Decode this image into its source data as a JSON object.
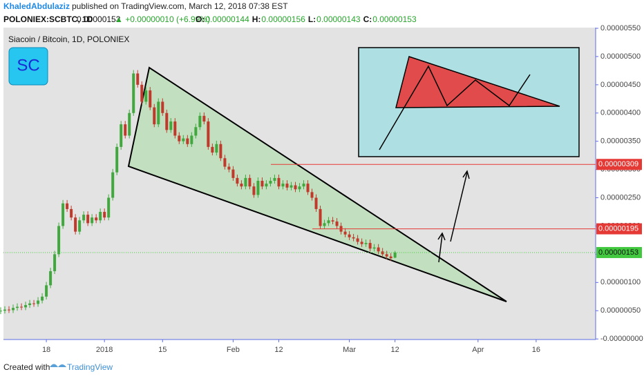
{
  "header": {
    "author": "KhaledAbdulaziz",
    "published": "published on TradingView.com, March 12, 2018 07:38 EST",
    "symbol": "POLONIEX:SCBTC, 1D",
    "last": "0.00000153",
    "change": "▲ +0.00000010 (+6.99%)",
    "ohlc": [
      "O:",
      "0.00000144",
      "H:",
      "0.00000156",
      "L:",
      "0.00000143",
      "C:",
      "0.00000153"
    ]
  },
  "chart_data": {
    "type": "candlestick",
    "title": "Siacoin / Bitcoin, 1D, POLONIEX",
    "logo": "SC",
    "up_color": "#41a83e",
    "down_color": "#c0392b",
    "open": [
      4.9e-07,
      5e-07,
      5.2e-07,
      5.1e-07,
      5.5e-07,
      5.7e-07,
      5.6e-07,
      6e-07,
      6.3e-07,
      6.2e-07,
      6.8e-07,
      7.5e-07,
      9.5e-07,
      1.2e-06,
      1.5e-06,
      2e-06,
      2.4e-06,
      2.3e-06,
      2.15e-06,
      1.9e-06,
      2.1e-06,
      2.2e-06,
      2.05e-06,
      2.15e-06,
      2.1e-06,
      2.25e-06,
      2.15e-06,
      2.5e-06,
      2.95e-06,
      3.4e-06,
      3.8e-06,
      3.6e-06,
      4e-06,
      4.7e-06,
      4.5e-06,
      4.2e-06,
      4.4e-06,
      4.1e-06,
      3.8e-06,
      4.2e-06,
      4e-06,
      3.7e-06,
      3.85e-06,
      3.6e-06,
      3.5e-06,
      3.55e-06,
      3.45e-06,
      3.6e-06,
      3.75e-06,
      3.95e-06,
      3.85e-06,
      3.4e-06,
      3.3e-06,
      3.45e-06,
      3.2e-06,
      3.05e-06,
      3e-06,
      2.85e-06,
      2.75e-06,
      2.7e-06,
      2.85e-06,
      2.7e-06,
      2.55e-06,
      2.8e-06,
      2.7e-06,
      2.75e-06,
      2.8e-06,
      2.85e-06,
      2.7e-06,
      2.75e-06,
      2.68e-06,
      2.72e-06,
      2.65e-06,
      2.7e-06,
      2.75e-06,
      2.6e-06,
      2.5e-06,
      2.3e-06,
      2e-06,
      2.05e-06,
      2.1e-06,
      2.08e-06,
      2e-06,
      1.9e-06,
      1.85e-06,
      1.8e-06,
      1.78e-06,
      1.72e-06,
      1.68e-06,
      1.7e-06,
      1.6e-06,
      1.62e-06,
      1.55e-06,
      1.5e-06,
      1.46e-06,
      1.44e-06
    ],
    "high": [
      5.6e-07,
      5.8e-07,
      5.8e-07,
      6.1e-07,
      6.3e-07,
      6.3e-07,
      6.6e-07,
      6.9e-07,
      6.9e-07,
      7.4e-07,
      8.1e-07,
      1.01e-06,
      1.26e-06,
      1.56e-06,
      2.06e-06,
      2.46e-06,
      2.46e-06,
      2.36e-06,
      2.21e-06,
      2.16e-06,
      2.26e-06,
      2.26e-06,
      2.21e-06,
      2.21e-06,
      2.31e-06,
      2.31e-06,
      2.56e-06,
      3.01e-06,
      3.46e-06,
      3.86e-06,
      3.86e-06,
      4.06e-06,
      4.76e-06,
      4.76e-06,
      4.56e-06,
      4.46e-06,
      4.46e-06,
      4.16e-06,
      4.26e-06,
      4.26e-06,
      4.06e-06,
      3.91e-06,
      3.91e-06,
      3.66e-06,
      3.61e-06,
      3.61e-06,
      3.66e-06,
      3.81e-06,
      4.01e-06,
      4.01e-06,
      3.91e-06,
      3.46e-06,
      3.51e-06,
      3.51e-06,
      3.26e-06,
      3.11e-06,
      3.06e-06,
      2.91e-06,
      2.81e-06,
      2.91e-06,
      2.91e-06,
      2.76e-06,
      2.86e-06,
      2.86e-06,
      2.81e-06,
      2.86e-06,
      2.91e-06,
      2.91e-06,
      2.81e-06,
      2.81e-06,
      2.78e-06,
      2.78e-06,
      2.76e-06,
      2.81e-06,
      2.81e-06,
      2.66e-06,
      2.56e-06,
      2.36e-06,
      2.11e-06,
      2.16e-06,
      2.16e-06,
      2.14e-06,
      2.06e-06,
      1.96e-06,
      1.91e-06,
      1.86e-06,
      1.84e-06,
      1.78e-06,
      1.76e-06,
      1.76e-06,
      1.68e-06,
      1.68e-06,
      1.61e-06,
      1.56e-06,
      1.52e-06,
      1.56e-06
    ],
    "low": [
      4.4e-07,
      4.5e-07,
      4.6e-07,
      4.6e-07,
      5e-07,
      5.1e-07,
      5.1e-07,
      5.5e-07,
      5.7e-07,
      5.7e-07,
      6.3e-07,
      7e-07,
      9e-07,
      1.15e-06,
      1.45e-06,
      1.95e-06,
      2.25e-06,
      2.1e-06,
      1.85e-06,
      1.85e-06,
      2.05e-06,
      2e-06,
      2e-06,
      2.05e-06,
      2.05e-06,
      2.1e-06,
      2.1e-06,
      2.45e-06,
      2.9e-06,
      3.35e-06,
      3.55e-06,
      3.55e-06,
      3.95e-06,
      4.45e-06,
      4.15e-06,
      4.15e-06,
      4.05e-06,
      3.75e-06,
      3.75e-06,
      3.95e-06,
      3.65e-06,
      3.65e-06,
      3.55e-06,
      3.45e-06,
      3.45e-06,
      3.4e-06,
      3.4e-06,
      3.55e-06,
      3.7e-06,
      3.8e-06,
      3.35e-06,
      3.25e-06,
      3.25e-06,
      3.15e-06,
      3e-06,
      2.95e-06,
      2.8e-06,
      2.7e-06,
      2.65e-06,
      2.65e-06,
      2.65e-06,
      2.5e-06,
      2.5e-06,
      2.65e-06,
      2.65e-06,
      2.7e-06,
      2.75e-06,
      2.65e-06,
      2.65e-06,
      2.63e-06,
      2.63e-06,
      2.6e-06,
      2.6e-06,
      2.65e-06,
      2.55e-06,
      2.45e-06,
      2.25e-06,
      1.95e-06,
      1.95e-06,
      2e-06,
      2.03e-06,
      1.95e-06,
      1.85e-06,
      1.8e-06,
      1.75e-06,
      1.73e-06,
      1.67e-06,
      1.63e-06,
      1.63e-06,
      1.55e-06,
      1.55e-06,
      1.5e-06,
      1.45e-06,
      1.41e-06,
      1.38e-06,
      1.43e-06
    ],
    "close": [
      5e-07,
      5.2e-07,
      5.1e-07,
      5.5e-07,
      5.7e-07,
      5.6e-07,
      6e-07,
      6.3e-07,
      6.2e-07,
      6.8e-07,
      7.5e-07,
      9.5e-07,
      1.2e-06,
      1.5e-06,
      2e-06,
      2.4e-06,
      2.3e-06,
      2.15e-06,
      1.9e-06,
      2.1e-06,
      2.2e-06,
      2.05e-06,
      2.15e-06,
      2.1e-06,
      2.25e-06,
      2.15e-06,
      2.5e-06,
      2.95e-06,
      3.4e-06,
      3.8e-06,
      3.6e-06,
      4e-06,
      4.7e-06,
      4.5e-06,
      4.2e-06,
      4.4e-06,
      4.1e-06,
      3.8e-06,
      4.2e-06,
      4e-06,
      3.7e-06,
      3.85e-06,
      3.6e-06,
      3.5e-06,
      3.55e-06,
      3.45e-06,
      3.6e-06,
      3.75e-06,
      3.95e-06,
      3.85e-06,
      3.4e-06,
      3.3e-06,
      3.45e-06,
      3.2e-06,
      3.05e-06,
      3e-06,
      2.85e-06,
      2.75e-06,
      2.7e-06,
      2.85e-06,
      2.7e-06,
      2.55e-06,
      2.8e-06,
      2.7e-06,
      2.75e-06,
      2.8e-06,
      2.85e-06,
      2.7e-06,
      2.75e-06,
      2.68e-06,
      2.72e-06,
      2.65e-06,
      2.7e-06,
      2.75e-06,
      2.6e-06,
      2.5e-06,
      2.3e-06,
      2e-06,
      2.05e-06,
      2.1e-06,
      2.08e-06,
      2e-06,
      1.9e-06,
      1.85e-06,
      1.8e-06,
      1.78e-06,
      1.72e-06,
      1.68e-06,
      1.7e-06,
      1.6e-06,
      1.62e-06,
      1.55e-06,
      1.5e-06,
      1.46e-06,
      1.43e-06,
      1.53e-06
    ],
    "xlim": [
      1,
      143
    ],
    "xticks": [
      {
        "value": 11,
        "label": "18"
      },
      {
        "value": 25,
        "label": "2018"
      },
      {
        "value": 39,
        "label": "15"
      },
      {
        "value": 56,
        "label": "Feb"
      },
      {
        "value": 67,
        "label": "12"
      },
      {
        "value": 84,
        "label": "Mar"
      },
      {
        "value": 95,
        "label": "12"
      },
      {
        "value": 115,
        "label": "Apr"
      },
      {
        "value": 129,
        "label": "16"
      }
    ],
    "ylim": [
      -1e-08,
      5.5e-06
    ],
    "yticks": [
      {
        "value": 0,
        "label": "-0.00000000"
      },
      {
        "value": 5e-07,
        "label": "0.00000050"
      },
      {
        "value": 1e-06,
        "label": "0.00000100"
      },
      {
        "value": 1.5e-06,
        "label": "0.00000150"
      },
      {
        "value": 2e-06,
        "label": "0.00000200"
      },
      {
        "value": 2.5e-06,
        "label": "0.00000250"
      },
      {
        "value": 3e-06,
        "label": "0.00000300"
      },
      {
        "value": 3.5e-06,
        "label": "0.00000350"
      },
      {
        "value": 4e-06,
        "label": "0.00000400"
      },
      {
        "value": 4.5e-06,
        "label": "0.00000450"
      },
      {
        "value": 5e-06,
        "label": "0.00000500"
      },
      {
        "value": 5.5e-06,
        "label": "0.00000550"
      }
    ],
    "price_lines": [
      {
        "value": 3.09e-06,
        "label": "0.00000309",
        "color": "#e53935"
      },
      {
        "value": 1.95e-06,
        "label": "0.00000195",
        "color": "#e53935"
      },
      {
        "value": 1.53e-06,
        "label": "0.00000153",
        "color": "#41c83e"
      }
    ]
  },
  "footer": {
    "created": "Created with",
    "brand": "TradingView"
  }
}
